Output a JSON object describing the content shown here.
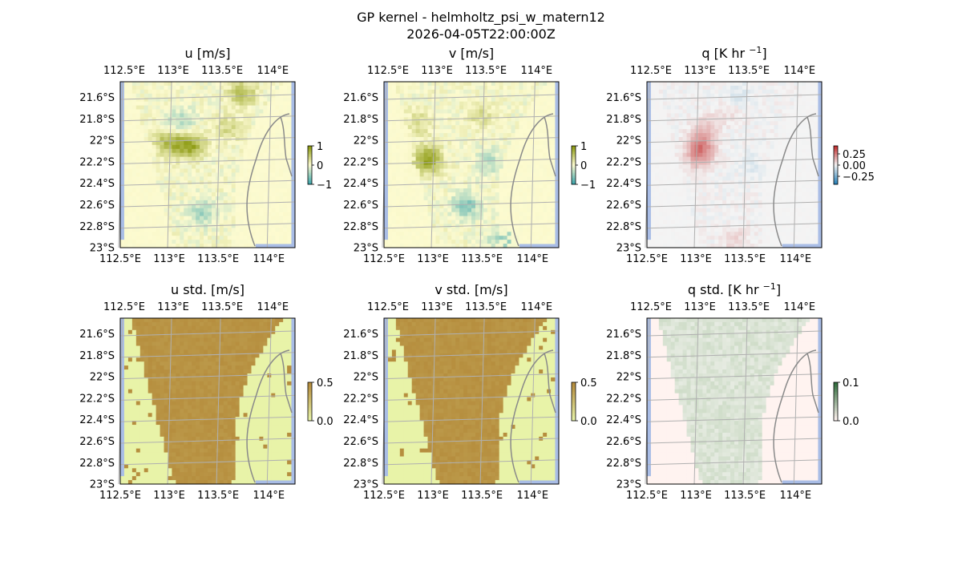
{
  "figure": {
    "title": "GP kernel - helmholtz_psi_w_matern12",
    "timestamp": "2026-04-05T22:00:00Z"
  },
  "colors": {
    "land": "#a9bde6",
    "grid": "#b0b0b0",
    "coast": "#8a8a8a",
    "frame": "#000000"
  },
  "chart_data": [
    {
      "type": "heatmap",
      "id": "u",
      "title": "u [m/s]",
      "title_sup": "",
      "x_ticks": [
        "112.5°E",
        "113°E",
        "113.5°E",
        "114°E"
      ],
      "y_ticks": [
        "21.6°S",
        "21.8°S",
        "22°S",
        "22.2°S",
        "22.4°S",
        "22.6°S",
        "22.8°S",
        "23°S"
      ],
      "colorbar": {
        "ticks": [
          "1",
          "0",
          "−1"
        ],
        "range": [
          -1,
          1
        ]
      },
      "palette": {
        "neg": "#3fa7ad",
        "zero": "#fdfbd0",
        "pos": "#8c9a10"
      },
      "field": {
        "seed": 11,
        "scale": 0.55,
        "spots": [
          [
            0.4,
            0.38,
            1.0
          ],
          [
            0.28,
            0.37,
            0.8
          ],
          [
            0.7,
            0.07,
            0.7
          ],
          [
            0.35,
            0.25,
            -0.5
          ],
          [
            0.47,
            0.79,
            -0.5
          ],
          [
            0.62,
            0.28,
            0.4
          ]
        ],
        "mask": "plume"
      }
    },
    {
      "type": "heatmap",
      "id": "v",
      "title": "v [m/s]",
      "title_sup": "",
      "x_ticks": [
        "112.5°E",
        "113°E",
        "113.5°E",
        "114°E"
      ],
      "y_ticks": [
        "21.6°S",
        "21.8°S",
        "22°S",
        "22.2°S",
        "22.4°S",
        "22.6°S",
        "22.8°S",
        "23°S"
      ],
      "colorbar": {
        "ticks": [
          "1",
          "0",
          "−1"
        ],
        "range": [
          -1,
          1
        ]
      },
      "palette": {
        "neg": "#3fa7ad",
        "zero": "#fdfbd0",
        "pos": "#8c9a10"
      },
      "field": {
        "seed": 23,
        "scale": 0.55,
        "spots": [
          [
            0.25,
            0.47,
            1.1
          ],
          [
            0.47,
            0.75,
            -0.7
          ],
          [
            0.6,
            0.48,
            -0.4
          ],
          [
            0.68,
            0.95,
            -0.6
          ],
          [
            0.2,
            0.25,
            0.4
          ],
          [
            0.55,
            0.2,
            0.35
          ]
        ],
        "mask": "plume"
      }
    },
    {
      "type": "heatmap",
      "id": "q",
      "title": "q [K hr ",
      "title_sup": "−1",
      "title_end": "]",
      "x_ticks": [
        "112.5°E",
        "113°E",
        "113.5°E",
        "114°E"
      ],
      "y_ticks": [
        "21.6°S",
        "21.8°S",
        "22°S",
        "22.2°S",
        "22.4°S",
        "22.6°S",
        "22.8°S",
        "23°S"
      ],
      "colorbar": {
        "ticks": [
          "0.25",
          "0.00",
          "−0.25"
        ],
        "range": [
          -0.4,
          0.4
        ]
      },
      "palette": {
        "neg": "#2b83ba",
        "zero": "#f4f4f4",
        "pos": "#c22e2e"
      },
      "field": {
        "seed": 37,
        "scale": 0.25,
        "spots": [
          [
            0.31,
            0.38,
            1.1
          ],
          [
            0.3,
            0.45,
            0.9
          ],
          [
            0.34,
            0.27,
            0.5
          ],
          [
            0.48,
            0.17,
            0.3
          ],
          [
            0.52,
            0.1,
            -0.35
          ],
          [
            0.6,
            0.5,
            -0.25
          ],
          [
            0.5,
            0.95,
            0.4
          ]
        ],
        "mask": "plume"
      }
    },
    {
      "type": "heatmap",
      "id": "u_std",
      "title": "u std. [m/s]",
      "title_sup": "",
      "x_ticks": [
        "112.5°E",
        "113°E",
        "113.5°E",
        "114°E"
      ],
      "y_ticks": [
        "21.6°S",
        "21.8°S",
        "22°S",
        "22.2°S",
        "22.4°S",
        "22.6°S",
        "22.8°S",
        "23°S"
      ],
      "colorbar": {
        "ticks": [
          "0.5",
          "0.0"
        ],
        "range": [
          0,
          0.5
        ]
      },
      "palette": {
        "low": "#e8f3a8",
        "high": "#b48a3a"
      },
      "field": {
        "seed": 41,
        "kind": "std",
        "value": 0.48,
        "mask": "plume"
      }
    },
    {
      "type": "heatmap",
      "id": "v_std",
      "title": "v std. [m/s]",
      "title_sup": "",
      "x_ticks": [
        "112.5°E",
        "113°E",
        "113.5°E",
        "114°E"
      ],
      "y_ticks": [
        "21.6°S",
        "21.8°S",
        "22°S",
        "22.2°S",
        "22.4°S",
        "22.6°S",
        "22.8°S",
        "23°S"
      ],
      "colorbar": {
        "ticks": [
          "0.5",
          "0.0"
        ],
        "range": [
          0,
          0.5
        ]
      },
      "palette": {
        "low": "#e8f3a8",
        "high": "#b48a3a"
      },
      "field": {
        "seed": 43,
        "kind": "std",
        "value": 0.48,
        "mask": "plume"
      }
    },
    {
      "type": "heatmap",
      "id": "q_std",
      "title": "q std. [K hr ",
      "title_sup": "−1",
      "title_end": "]",
      "x_ticks": [
        "112.5°E",
        "113°E",
        "113.5°E",
        "114°E"
      ],
      "y_ticks": [
        "21.6°S",
        "21.8°S",
        "22°S",
        "22.2°S",
        "22.4°S",
        "22.6°S",
        "22.8°S",
        "23°S"
      ],
      "colorbar": {
        "ticks": [
          "0.1",
          "0.0"
        ],
        "range": [
          0,
          0.1
        ]
      },
      "palette": {
        "low": "#fff3f0",
        "high": "#2e6b3a"
      },
      "field": {
        "seed": 47,
        "kind": "qstd",
        "value": 0.02,
        "mask": "plume"
      }
    }
  ]
}
